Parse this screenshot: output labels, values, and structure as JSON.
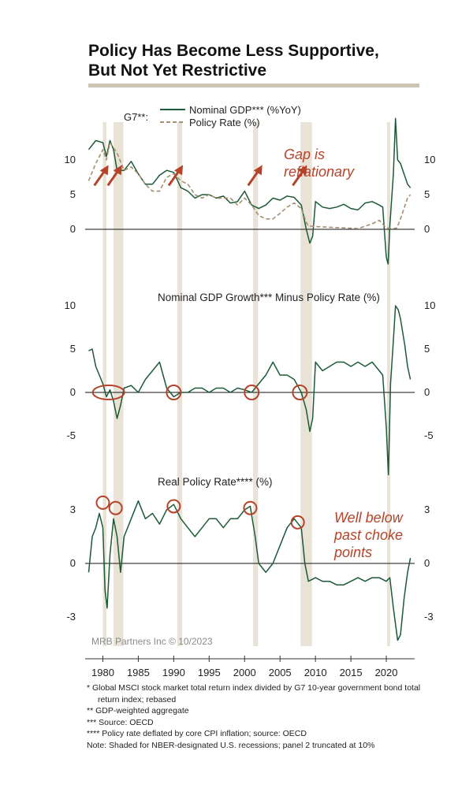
{
  "title": {
    "line1": "Policy Has Become Less Supportive,",
    "line2": "But Not Yet Restrictive"
  },
  "colors": {
    "gdp": "#1c5a37",
    "policy": "#a88e6e",
    "recession": "#e8e3d6",
    "annotation": "#b5432a",
    "rule": "#cdc5b4"
  },
  "chart_data": [
    {
      "type": "line",
      "title": "",
      "legend_prefix": "G7**:",
      "legend_placement": "top-left",
      "ylim": [
        -5,
        16
      ],
      "yticks": [
        0,
        5,
        10
      ],
      "series": [
        {
          "name": "Nominal GDP*** (%YoY)",
          "style": "solid",
          "points": [
            [
              1978,
              11.5
            ],
            [
              1979,
              12.8
            ],
            [
              1980,
              12.5
            ],
            [
              1980.5,
              10.5
            ],
            [
              1981,
              12.8
            ],
            [
              1981.5,
              11.5
            ],
            [
              1982,
              8.5
            ],
            [
              1983,
              8.5
            ],
            [
              1984,
              9.8
            ],
            [
              1985,
              8.0
            ],
            [
              1986,
              6.5
            ],
            [
              1987,
              6.5
            ],
            [
              1988,
              7.8
            ],
            [
              1989,
              8.5
            ],
            [
              1990,
              8.2
            ],
            [
              1991,
              6.0
            ],
            [
              1992,
              5.5
            ],
            [
              1993,
              4.5
            ],
            [
              1994,
              5.0
            ],
            [
              1995,
              5.0
            ],
            [
              1996,
              4.5
            ],
            [
              1997,
              4.8
            ],
            [
              1998,
              3.8
            ],
            [
              1999,
              4.0
            ],
            [
              2000,
              5.5
            ],
            [
              2001,
              3.5
            ],
            [
              2002,
              3.0
            ],
            [
              2003,
              3.5
            ],
            [
              2004,
              4.5
            ],
            [
              2005,
              4.2
            ],
            [
              2006,
              4.8
            ],
            [
              2007,
              4.6
            ],
            [
              2008,
              3.5
            ],
            [
              2008.7,
              0
            ],
            [
              2009.2,
              -2
            ],
            [
              2009.6,
              -1
            ],
            [
              2010,
              4.0
            ],
            [
              2011,
              3.2
            ],
            [
              2012,
              3.0
            ],
            [
              2013,
              3.2
            ],
            [
              2014,
              3.6
            ],
            [
              2015,
              3.0
            ],
            [
              2016,
              2.8
            ],
            [
              2017,
              3.8
            ],
            [
              2018,
              4.0
            ],
            [
              2019,
              3.5
            ],
            [
              2019.5,
              3.2
            ],
            [
              2020,
              -4.0
            ],
            [
              2020.25,
              -8.0
            ],
            [
              2020.5,
              0.5
            ],
            [
              2021,
              8.0
            ],
            [
              2021.3,
              16.0
            ],
            [
              2021.6,
              10.0
            ],
            [
              2022,
              9.5
            ],
            [
              2022.5,
              8.0
            ],
            [
              2023,
              6.5
            ],
            [
              2023.4,
              6.0
            ]
          ]
        },
        {
          "name": "Policy Rate (%)",
          "style": "dashed",
          "points": [
            [
              1978,
              7.0
            ],
            [
              1979,
              9.5
            ],
            [
              1980,
              11.5
            ],
            [
              1980.5,
              10.0
            ],
            [
              1981,
              12.5
            ],
            [
              1982,
              11.0
            ],
            [
              1983,
              8.5
            ],
            [
              1984,
              9.0
            ],
            [
              1985,
              8.0
            ],
            [
              1986,
              6.5
            ],
            [
              1987,
              5.5
            ],
            [
              1988,
              5.5
            ],
            [
              1989,
              7.5
            ],
            [
              1990,
              8.0
            ],
            [
              1991,
              7.0
            ],
            [
              1992,
              6.5
            ],
            [
              1993,
              5.0
            ],
            [
              1994,
              4.5
            ],
            [
              1995,
              5.0
            ],
            [
              1996,
              4.5
            ],
            [
              1997,
              4.5
            ],
            [
              1998,
              4.5
            ],
            [
              1999,
              3.5
            ],
            [
              2000,
              4.5
            ],
            [
              2001,
              3.5
            ],
            [
              2002,
              2.0
            ],
            [
              2003,
              1.5
            ],
            [
              2004,
              1.5
            ],
            [
              2005,
              2.3
            ],
            [
              2006,
              3.2
            ],
            [
              2007,
              3.8
            ],
            [
              2008,
              3.0
            ],
            [
              2008.7,
              1.0
            ],
            [
              2009,
              0.5
            ],
            [
              2010,
              0.4
            ],
            [
              2012,
              0.3
            ],
            [
              2014,
              0.2
            ],
            [
              2016,
              0.1
            ],
            [
              2018,
              0.8
            ],
            [
              2019,
              1.3
            ],
            [
              2020,
              0.2
            ],
            [
              2021,
              0.1
            ],
            [
              2021.5,
              0.2
            ],
            [
              2022,
              1.5
            ],
            [
              2022.5,
              3.0
            ],
            [
              2023,
              4.5
            ],
            [
              2023.4,
              5.0
            ]
          ]
        }
      ],
      "arrows_x": [
        1978.8,
        1980.7,
        1989.3,
        2000.5,
        2006.8
      ],
      "annotation": [
        "Gap is",
        "reflationary"
      ]
    },
    {
      "type": "line",
      "title": "Nominal GDP Growth*** Minus Policy Rate (%)",
      "ylim": [
        -10,
        10
      ],
      "yticks": [
        -5,
        0,
        5,
        10
      ],
      "series": [
        {
          "name": "",
          "style": "solid",
          "points": [
            [
              1978,
              4.8
            ],
            [
              1978.5,
              5.0
            ],
            [
              1979,
              3.0
            ],
            [
              1979.5,
              2.0
            ],
            [
              1980,
              1.0
            ],
            [
              1980.5,
              -0.5
            ],
            [
              1981,
              0.3
            ],
            [
              1981.5,
              -1.0
            ],
            [
              1982,
              -3.0
            ],
            [
              1982.5,
              -1.5
            ],
            [
              1983,
              0.5
            ],
            [
              1984,
              0.8
            ],
            [
              1985,
              0
            ],
            [
              1986,
              1.5
            ],
            [
              1987,
              2.5
            ],
            [
              1988,
              3.5
            ],
            [
              1988.5,
              2.0
            ],
            [
              1989,
              0.5
            ],
            [
              1990,
              -0.5
            ],
            [
              1991,
              0
            ],
            [
              1992,
              0
            ],
            [
              1993,
              0.5
            ],
            [
              1994,
              0.5
            ],
            [
              1995,
              0
            ],
            [
              1996,
              0.5
            ],
            [
              1997,
              0.5
            ],
            [
              1998,
              0
            ],
            [
              1999,
              0.5
            ],
            [
              2000,
              0.3
            ],
            [
              2001,
              0
            ],
            [
              2002,
              1.0
            ],
            [
              2003,
              2.0
            ],
            [
              2004,
              3.5
            ],
            [
              2005,
              2.0
            ],
            [
              2006,
              2.0
            ],
            [
              2007,
              1.5
            ],
            [
              2008,
              0
            ],
            [
              2008.7,
              -2.0
            ],
            [
              2009.2,
              -4.5
            ],
            [
              2009.6,
              -3.0
            ],
            [
              2010,
              3.5
            ],
            [
              2011,
              2.5
            ],
            [
              2012,
              3.0
            ],
            [
              2013,
              3.5
            ],
            [
              2014,
              3.5
            ],
            [
              2015,
              3.0
            ],
            [
              2016,
              3.5
            ],
            [
              2017,
              3.0
            ],
            [
              2018,
              3.5
            ],
            [
              2019,
              2.5
            ],
            [
              2019.5,
              2.0
            ],
            [
              2020,
              -4.0
            ],
            [
              2020.3,
              -9.5
            ],
            [
              2020.6,
              1.0
            ],
            [
              2021,
              6.0
            ],
            [
              2021.3,
              10.0
            ],
            [
              2021.7,
              9.5
            ],
            [
              2022,
              8.5
            ],
            [
              2022.6,
              5.5
            ],
            [
              2023,
              3.0
            ],
            [
              2023.4,
              1.5
            ]
          ]
        }
      ],
      "circles_x": [
        1980.8,
        1990,
        2001,
        2007.8
      ]
    },
    {
      "type": "line",
      "title": "Real Policy Rate**** (%)",
      "ylim": [
        -4.5,
        4
      ],
      "yticks": [
        -3,
        0,
        3
      ],
      "series": [
        {
          "name": "",
          "style": "solid",
          "points": [
            [
              1978,
              -0.5
            ],
            [
              1978.5,
              1.5
            ],
            [
              1979,
              2.0
            ],
            [
              1979.5,
              2.8
            ],
            [
              1980,
              2.0
            ],
            [
              1980.3,
              -1.5
            ],
            [
              1980.6,
              -2.5
            ],
            [
              1981,
              0.5
            ],
            [
              1981.5,
              2.5
            ],
            [
              1982,
              1.5
            ],
            [
              1982.5,
              -0.5
            ],
            [
              1983,
              1.5
            ],
            [
              1984,
              2.5
            ],
            [
              1985,
              3.5
            ],
            [
              1986,
              2.5
            ],
            [
              1987,
              2.8
            ],
            [
              1988,
              2.2
            ],
            [
              1989,
              3.0
            ],
            [
              1990,
              3.3
            ],
            [
              1991,
              2.5
            ],
            [
              1992,
              2.0
            ],
            [
              1993,
              1.5
            ],
            [
              1994,
              2.0
            ],
            [
              1995,
              2.5
            ],
            [
              1996,
              2.5
            ],
            [
              1997,
              2.0
            ],
            [
              1998,
              2.5
            ],
            [
              1999,
              2.5
            ],
            [
              2000,
              3.0
            ],
            [
              2000.8,
              3.2
            ],
            [
              2001.5,
              1.5
            ],
            [
              2002,
              0
            ],
            [
              2003,
              -0.5
            ],
            [
              2004,
              0
            ],
            [
              2005,
              1.0
            ],
            [
              2006,
              2.0
            ],
            [
              2007,
              2.5
            ],
            [
              2008,
              2.0
            ],
            [
              2008.5,
              0
            ],
            [
              2009,
              -1.0
            ],
            [
              2010,
              -0.8
            ],
            [
              2011,
              -1.0
            ],
            [
              2012,
              -1.0
            ],
            [
              2013,
              -1.2
            ],
            [
              2014,
              -1.2
            ],
            [
              2015,
              -1.0
            ],
            [
              2016,
              -0.8
            ],
            [
              2017,
              -1.0
            ],
            [
              2018,
              -0.8
            ],
            [
              2019,
              -0.8
            ],
            [
              2020,
              -1.0
            ],
            [
              2020.5,
              -0.8
            ],
            [
              2021,
              -2.5
            ],
            [
              2021.6,
              -4.3
            ],
            [
              2022,
              -4.0
            ],
            [
              2022.5,
              -2.0
            ],
            [
              2023,
              -0.5
            ],
            [
              2023.4,
              0.3
            ]
          ]
        }
      ],
      "circles": [
        [
          1980,
          3.4
        ],
        [
          1981.8,
          3.1
        ],
        [
          1990,
          3.2
        ],
        [
          2000.8,
          3.1
        ],
        [
          2007.5,
          2.3
        ]
      ],
      "annotation": [
        "Well below",
        "past choke",
        "points"
      ]
    }
  ],
  "x_axis": {
    "range": [
      1977.5,
      2024
    ],
    "ticks": [
      "1980",
      "1985",
      "1990",
      "1995",
      "2000",
      "2005",
      "2010",
      "2015",
      "2020"
    ]
  },
  "recessions": [
    [
      1980.0,
      1980.5
    ],
    [
      1981.5,
      1982.9
    ],
    [
      1990.5,
      1991.2
    ],
    [
      2001.2,
      2001.9
    ],
    [
      2007.9,
      2009.5
    ],
    [
      2020.1,
      2020.4
    ]
  ],
  "source": "MRB Partners Inc © 10/2023",
  "notes": [
    "*  Global MSCI stock market total return index divided by G7 10-year government bond total",
    "return index; rebased",
    "**  GDP-weighted aggregate",
    "***  Source: OECD",
    "****  Policy rate deflated by core CPI inflation; source: OECD",
    "Note: Shaded for NBER-designated U.S. recessions; panel 2 truncated at 10%"
  ]
}
